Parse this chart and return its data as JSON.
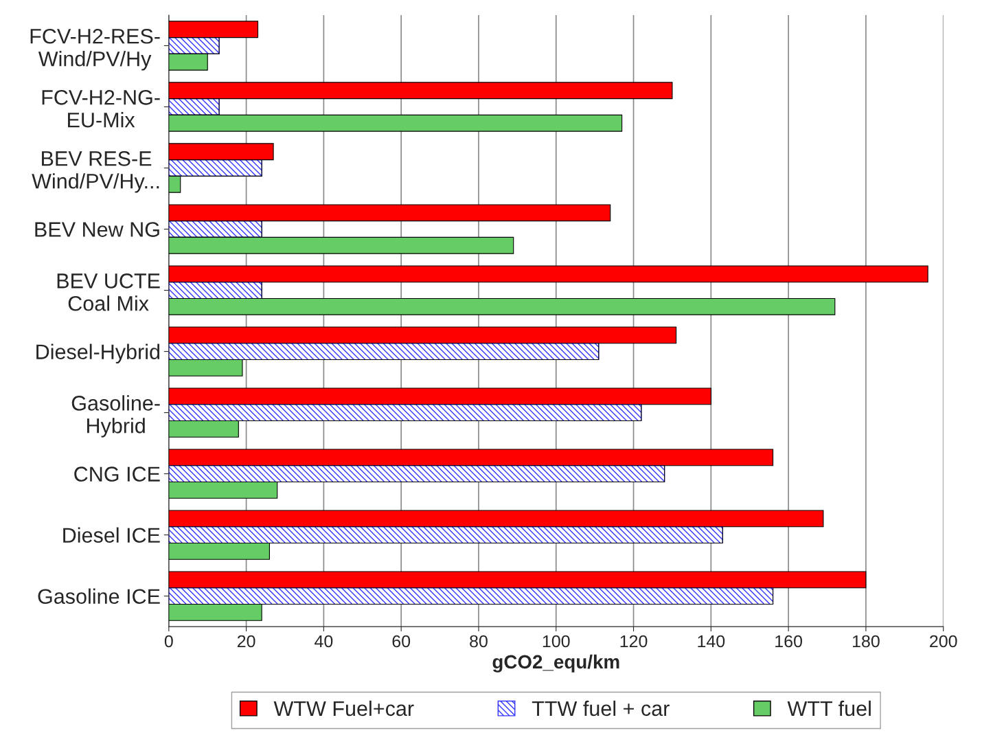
{
  "chart_data": {
    "type": "bar",
    "orientation": "horizontal",
    "xlabel": "gCO2_equ/km",
    "categories": [
      "FCV-H2-RES-\nWind/PV/Hy",
      "FCV-H2-NG-\nEU-Mix",
      "BEV RES-E\nWind/PV/Hy...",
      "BEV New NG",
      "BEV UCTE\nCoal Mix",
      "Diesel-Hybrid",
      "Gasoline-\nHybrid",
      "CNG ICE",
      "Diesel ICE",
      "Gasoline ICE"
    ],
    "series": [
      {
        "name": "WTW Fuel+car",
        "color": "#ff0000",
        "values": [
          23,
          130,
          27,
          114,
          196,
          131,
          140,
          156,
          169,
          180
        ]
      },
      {
        "name": "TTW fuel + car",
        "color": "#3333ff",
        "values": [
          13,
          13,
          24,
          24,
          24,
          111,
          122,
          128,
          143,
          156
        ]
      },
      {
        "name": "WTT fuel",
        "color": "#66cc66",
        "values": [
          10,
          117,
          3,
          89,
          172,
          19,
          18,
          28,
          26,
          24
        ]
      }
    ],
    "xlim": [
      0,
      200
    ],
    "xticks": [
      0,
      20,
      40,
      60,
      80,
      100,
      120,
      140,
      160,
      180,
      200
    ],
    "grid": "x",
    "legend": "bottom"
  }
}
